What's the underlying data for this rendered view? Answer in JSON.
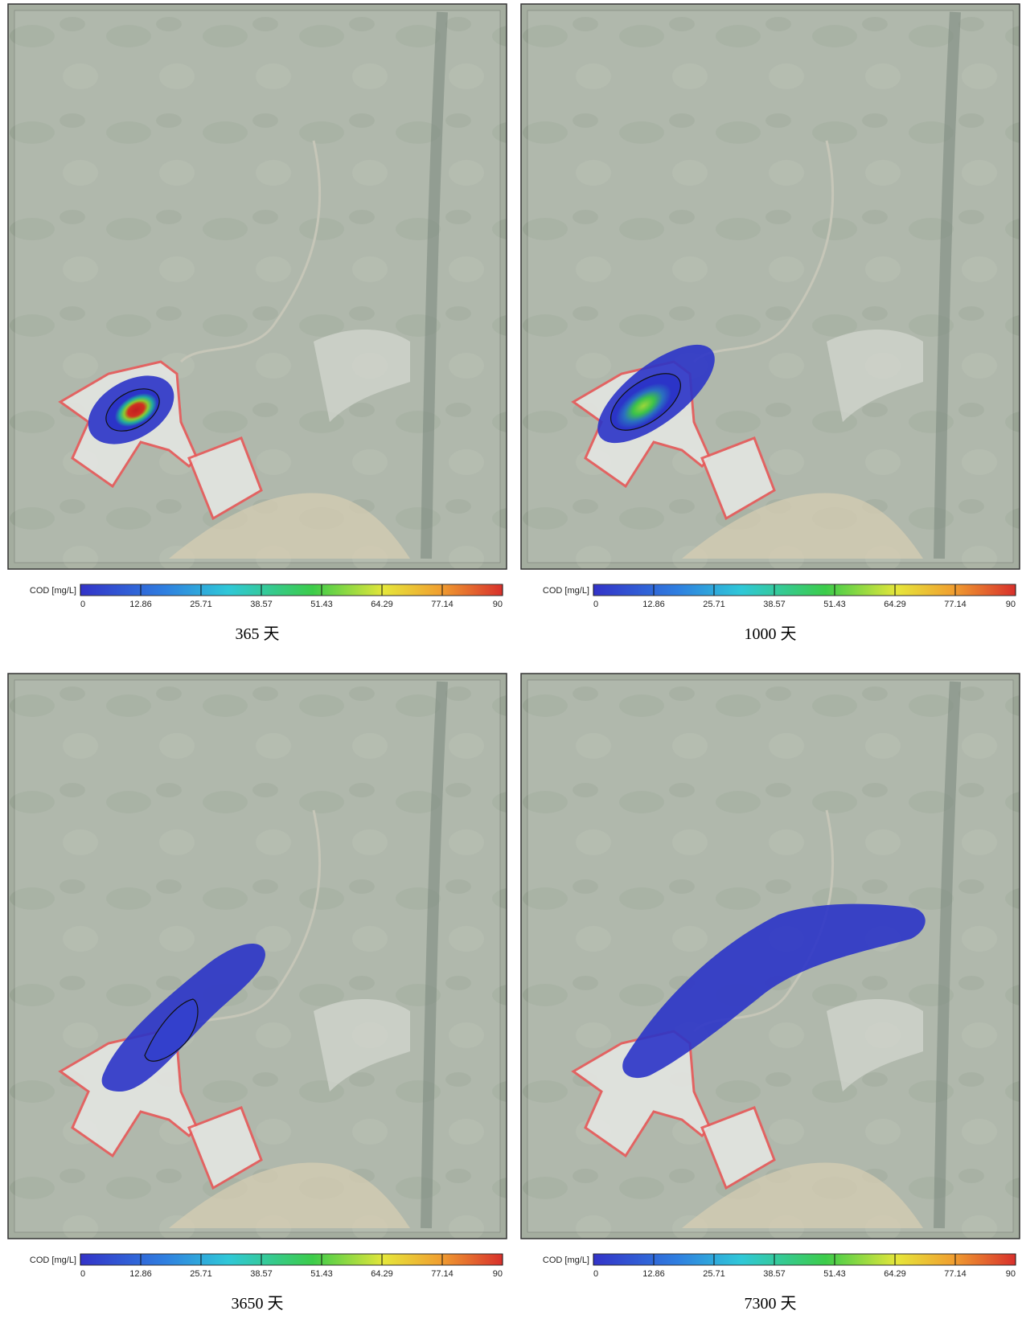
{
  "panels": [
    {
      "caption": "365 天",
      "colorbar": {
        "label": "COD [mg/L]",
        "ticks": [
          0,
          12.86,
          25.71,
          38.57,
          51.43,
          64.29,
          77.14,
          90
        ]
      }
    },
    {
      "caption": "1000 天",
      "colorbar": {
        "label": "COD [mg/L]",
        "ticks": [
          0,
          12.86,
          25.71,
          38.57,
          51.43,
          64.29,
          77.14,
          90
        ]
      }
    },
    {
      "caption": "3650 天",
      "colorbar": {
        "label": "COD [mg/L]",
        "ticks": [
          0,
          12.86,
          25.71,
          38.57,
          51.43,
          64.29,
          77.14,
          90
        ]
      }
    },
    {
      "caption": "7300 天",
      "colorbar": {
        "label": "COD [mg/L]",
        "ticks": [
          0,
          12.86,
          25.71,
          38.57,
          51.43,
          64.29,
          77.14,
          90
        ]
      }
    }
  ]
}
